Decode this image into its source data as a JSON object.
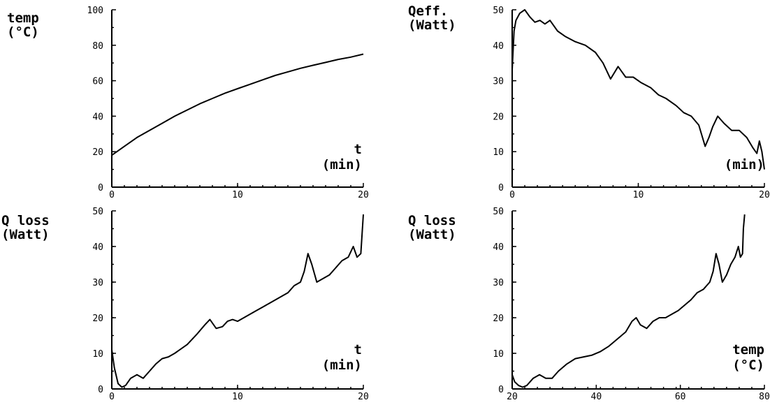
{
  "chart_data": [
    {
      "type": "line",
      "ylabel": [
        "temp",
        "(°C)"
      ],
      "xlabel": [
        "t",
        "(min)"
      ],
      "xlim": [
        0,
        20
      ],
      "ylim": [
        0,
        100
      ],
      "xticks": [
        "0",
        "10",
        "20"
      ],
      "yticks": [
        "0",
        "20",
        "40",
        "60",
        "80",
        "100"
      ],
      "series": [
        {
          "x": [
            0,
            1,
            2,
            3,
            4,
            5,
            6,
            7,
            8,
            9,
            10,
            11,
            12,
            13,
            14,
            15,
            16,
            17,
            18,
            19,
            20
          ],
          "y": [
            18,
            23,
            28,
            32,
            36,
            40,
            43.5,
            47,
            50,
            53,
            55.5,
            58,
            60.5,
            63,
            65,
            67,
            68.7,
            70.3,
            72,
            73.3,
            75
          ]
        }
      ]
    },
    {
      "type": "line",
      "ylabel": [
        "Qeff.",
        "(Watt)"
      ],
      "xlabel": [
        "",
        "(min)"
      ],
      "xlim": [
        0,
        20
      ],
      "ylim": [
        0,
        50
      ],
      "xticks": [
        "0",
        "10",
        "20"
      ],
      "yticks": [
        "0",
        "10",
        "20",
        "30",
        "40",
        "50"
      ],
      "series": [
        {
          "x": [
            0,
            0.15,
            0.3,
            0.6,
            1,
            1.4,
            1.8,
            2.2,
            2.6,
            3,
            3.6,
            4.2,
            5,
            5.8,
            6.6,
            7.2,
            7.8,
            8.4,
            9,
            9.6,
            10.2,
            11,
            11.6,
            12.2,
            13,
            13.6,
            14.2,
            14.8,
            15.3,
            15.6,
            15.9,
            16.3,
            16.8,
            17.4,
            18,
            18.6,
            19.1,
            19.4,
            19.6,
            19.8,
            20
          ],
          "y": [
            33,
            44,
            47,
            49,
            50,
            48,
            46.5,
            47,
            46,
            47,
            44,
            42.5,
            41,
            40,
            38,
            35,
            30.5,
            34,
            31,
            31,
            29.5,
            28,
            26,
            25,
            23,
            21,
            20,
            17.5,
            11.5,
            14,
            17,
            20,
            18,
            16,
            16,
            14,
            11,
            9.5,
            13,
            10,
            5
          ]
        }
      ]
    },
    {
      "type": "line",
      "ylabel": [
        "Q loss",
        "(Watt)"
      ],
      "xlabel": [
        "t",
        "(min)"
      ],
      "xlim": [
        0,
        20
      ],
      "ylim": [
        0,
        50
      ],
      "xticks": [
        "0",
        "10",
        "20"
      ],
      "yticks": [
        "0",
        "10",
        "20",
        "30",
        "40",
        "50"
      ],
      "series": [
        {
          "x": [
            0,
            0.2,
            0.5,
            0.8,
            1.1,
            1.5,
            2,
            2.5,
            3,
            3.5,
            4,
            4.5,
            5,
            6,
            6.8,
            7.4,
            7.8,
            8.3,
            8.8,
            9.2,
            9.6,
            10,
            10.5,
            11,
            11.5,
            12,
            12.5,
            13,
            13.5,
            14,
            14.5,
            15,
            15.3,
            15.6,
            15.9,
            16.3,
            16.8,
            17.3,
            17.8,
            18.3,
            18.8,
            19.2,
            19.5,
            19.8,
            20
          ],
          "y": [
            11,
            6,
            1.5,
            0.5,
            1,
            3,
            4,
            3,
            5,
            7,
            8.5,
            9,
            10,
            12.5,
            15.5,
            18,
            19.5,
            17,
            17.5,
            19,
            19.5,
            19,
            20,
            21,
            22,
            23,
            24,
            25,
            26,
            27,
            29,
            30,
            33,
            38,
            35,
            30,
            31,
            32,
            34,
            36,
            37,
            40,
            37,
            38,
            49
          ]
        }
      ]
    },
    {
      "type": "line",
      "ylabel": [
        "Q loss",
        "(Watt)"
      ],
      "xlabel": [
        "temp",
        "(°C)"
      ],
      "xlim": [
        20,
        80
      ],
      "ylim": [
        0,
        50
      ],
      "xticks": [
        "20",
        "40",
        "60",
        "80"
      ],
      "yticks": [
        "0",
        "10",
        "20",
        "30",
        "40",
        "50"
      ],
      "series": [
        {
          "x": [
            20,
            20.6,
            21.5,
            22.5,
            23.5,
            25,
            26.5,
            28,
            29.5,
            31,
            33,
            35,
            37,
            39,
            41,
            43,
            45,
            47,
            48.5,
            49.5,
            50.5,
            52,
            53.5,
            55,
            56.5,
            58,
            59.5,
            61,
            62.5,
            64,
            65.5,
            67,
            67.8,
            68.5,
            69.2,
            70,
            71,
            72,
            73,
            73.8,
            74.3,
            74.8,
            75,
            75.3
          ],
          "y": [
            4,
            2,
            1,
            0.5,
            1,
            3,
            4,
            3,
            3,
            5,
            7,
            8.5,
            9,
            9.5,
            10.5,
            12,
            14,
            16,
            19,
            20,
            18,
            17,
            19,
            20,
            20,
            21,
            22,
            23.5,
            25,
            27,
            28,
            30,
            33,
            38,
            35,
            30,
            32,
            35,
            37,
            40,
            37,
            38,
            45,
            49
          ]
        }
      ]
    }
  ]
}
